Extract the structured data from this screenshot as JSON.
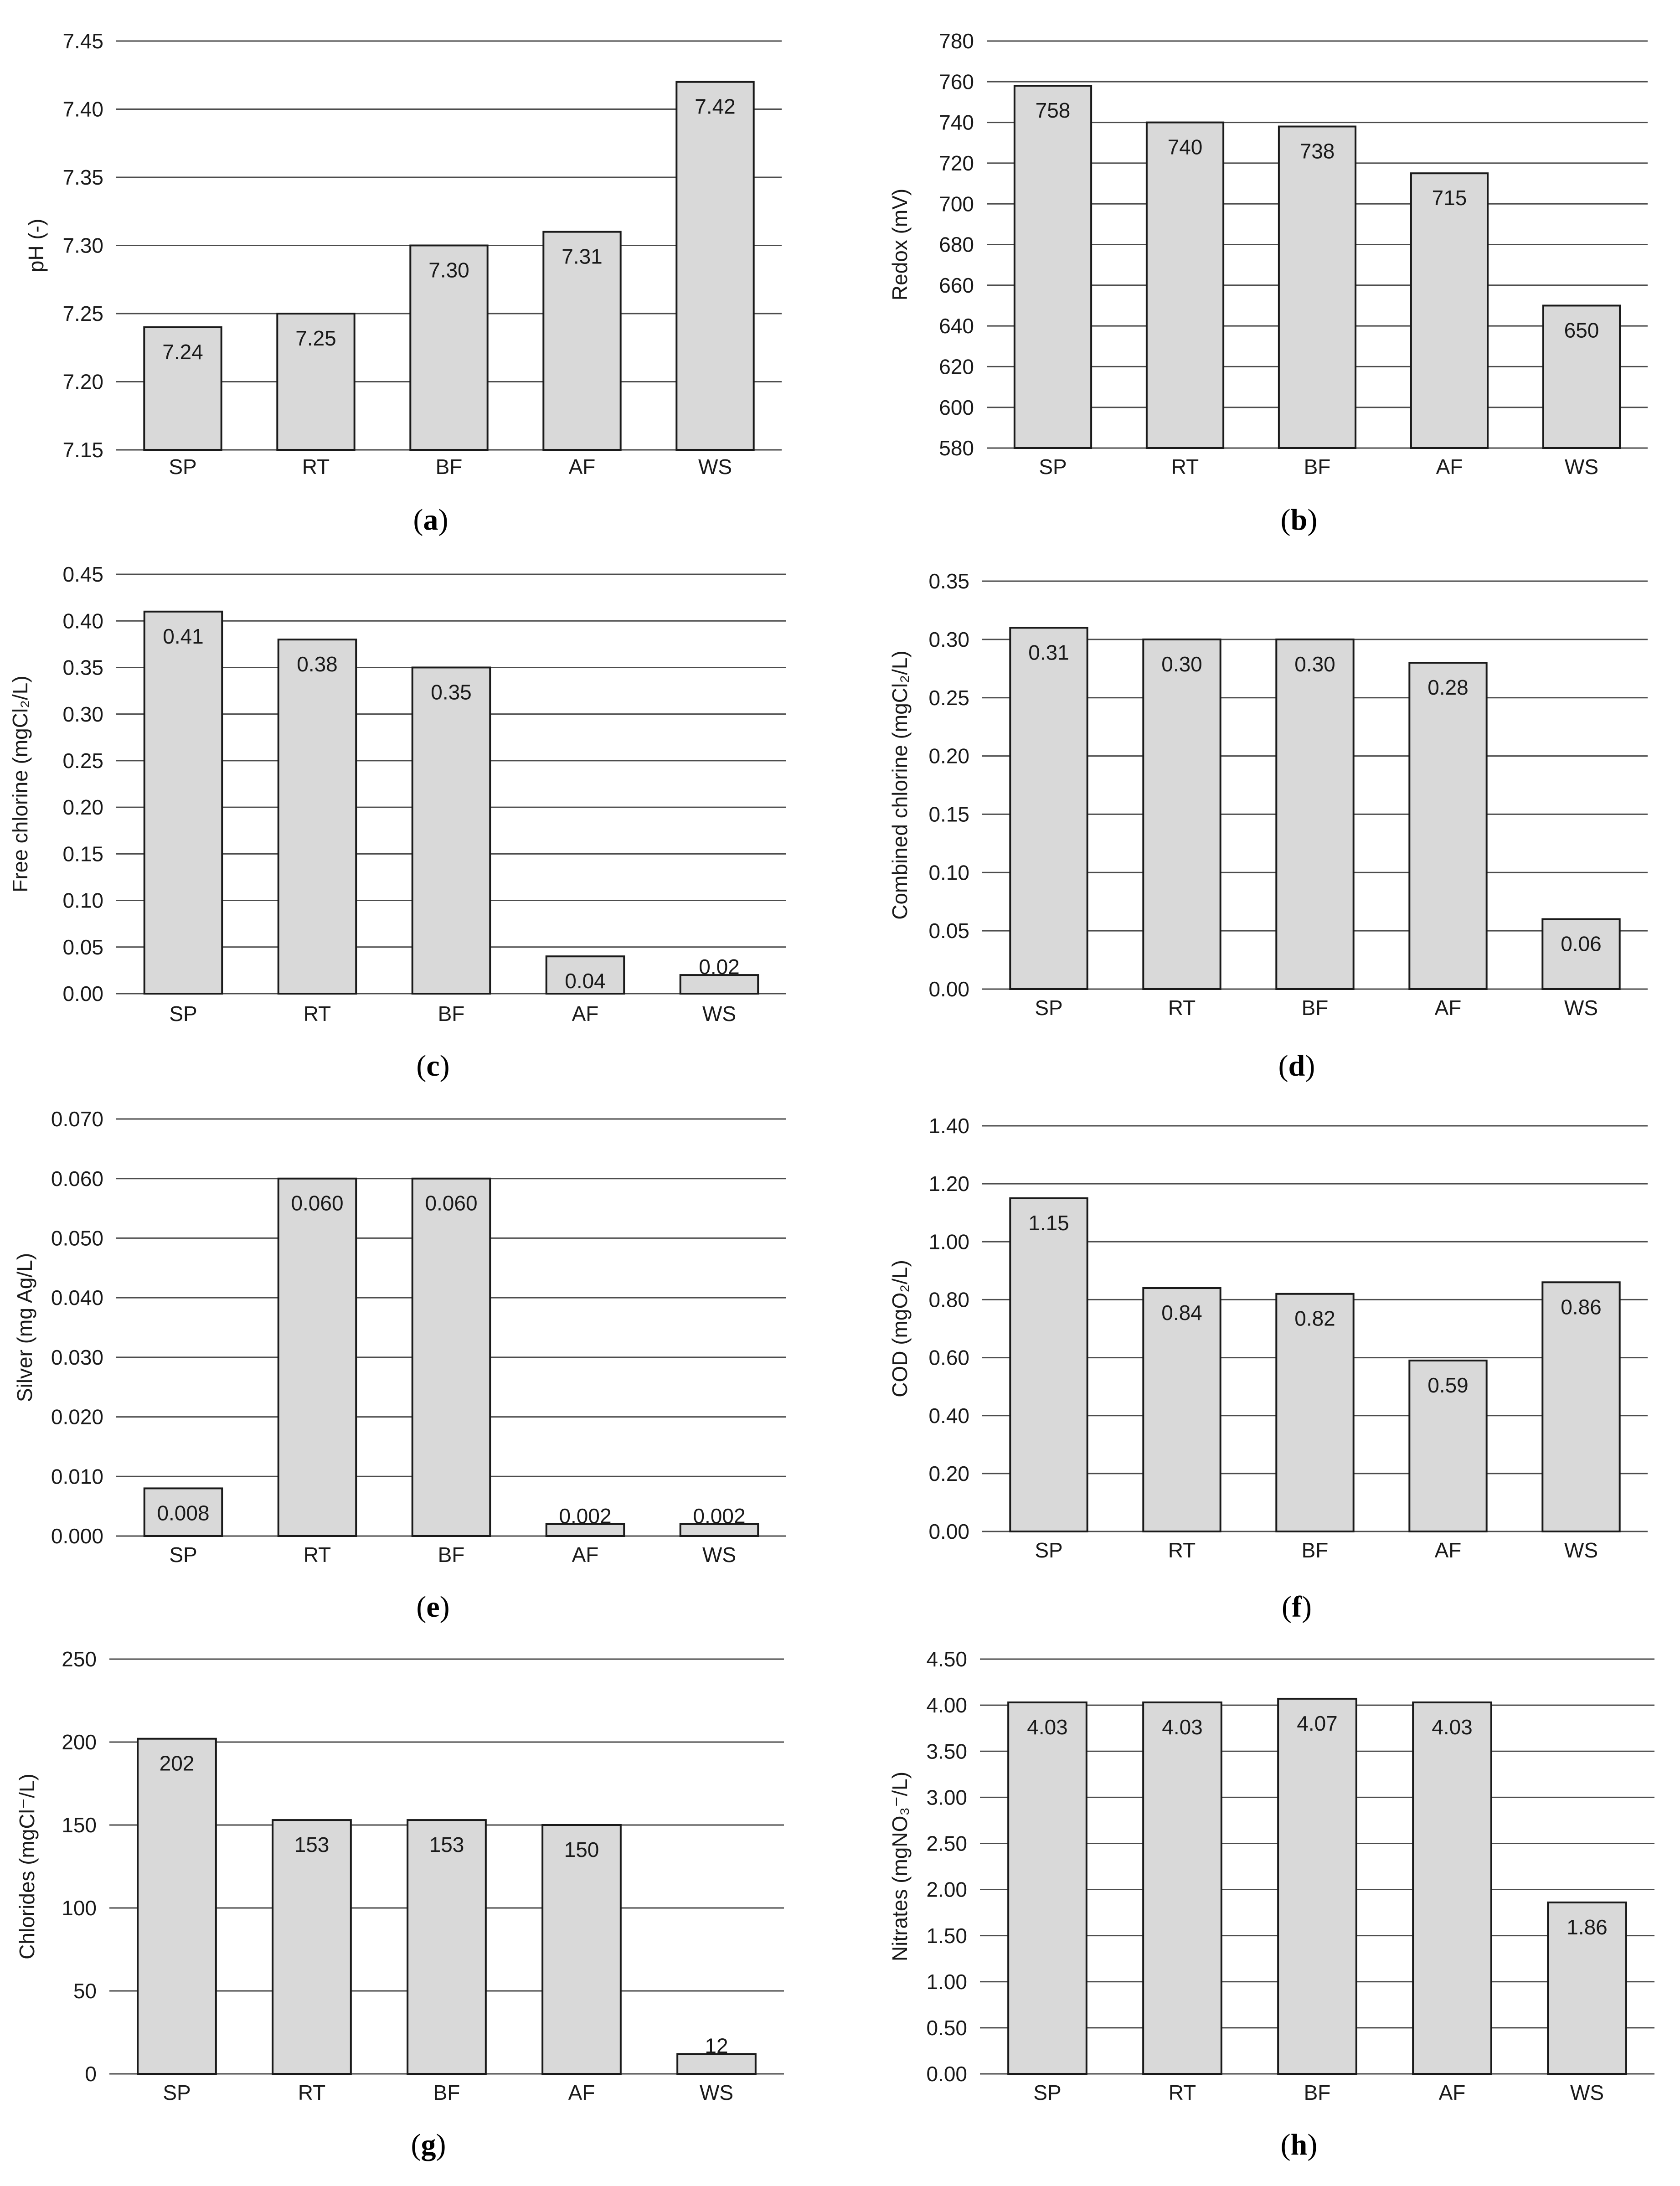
{
  "figure": {
    "palette": {
      "bar_fill": "#d9d9d9",
      "bar_stroke": "#1a1a1a",
      "grid": "#4d4d4d",
      "text": "#1a1a1a"
    }
  },
  "chart_data": [
    {
      "id": "a",
      "type": "bar",
      "caption_letter": "a",
      "categories": [
        "SP",
        "RT",
        "BF",
        "AF",
        "WS"
      ],
      "values": [
        7.24,
        7.25,
        7.3,
        7.31,
        7.42
      ],
      "value_labels": [
        "7.24",
        "7.25",
        "7.30",
        "7.31",
        "7.42"
      ],
      "ylabel": "pH (-)",
      "ylim": [
        7.15,
        7.45
      ],
      "yticks": [
        "7.15",
        "7.20",
        "7.25",
        "7.30",
        "7.35",
        "7.40",
        "7.45"
      ],
      "grid": true
    },
    {
      "id": "b",
      "type": "bar",
      "caption_letter": "b",
      "categories": [
        "SP",
        "RT",
        "BF",
        "AF",
        "WS"
      ],
      "values": [
        758,
        740,
        738,
        715,
        650
      ],
      "value_labels": [
        "758",
        "740",
        "738",
        "715",
        "650"
      ],
      "ylabel": "Redox (mV)",
      "ylim": [
        580,
        780
      ],
      "yticks": [
        "580",
        "600",
        "620",
        "640",
        "660",
        "680",
        "700",
        "720",
        "740",
        "760",
        "780"
      ],
      "grid": true
    },
    {
      "id": "c",
      "type": "bar",
      "caption_letter": "c",
      "categories": [
        "SP",
        "RT",
        "BF",
        "AF",
        "WS"
      ],
      "values": [
        0.41,
        0.38,
        0.35,
        0.04,
        0.02
      ],
      "value_labels": [
        "0.41",
        "0.38",
        "0.35",
        "0.04",
        "0.02"
      ],
      "ylabel": "Free chlorine (mgCl₂/L)",
      "ylim": [
        0,
        0.45
      ],
      "yticks": [
        "0.00",
        "0.05",
        "0.10",
        "0.15",
        "0.20",
        "0.25",
        "0.30",
        "0.35",
        "0.40",
        "0.45"
      ],
      "grid": true
    },
    {
      "id": "d",
      "type": "bar",
      "caption_letter": "d",
      "categories": [
        "SP",
        "RT",
        "BF",
        "AF",
        "WS"
      ],
      "values": [
        0.31,
        0.3,
        0.3,
        0.28,
        0.06
      ],
      "value_labels": [
        "0.31",
        "0.30",
        "0.30",
        "0.28",
        "0.06"
      ],
      "ylabel": "Combined chlorine (mgCl₂/L)",
      "ylim": [
        0,
        0.35
      ],
      "yticks": [
        "0.00",
        "0.05",
        "0.10",
        "0.15",
        "0.20",
        "0.25",
        "0.30",
        "0.35"
      ],
      "grid": true
    },
    {
      "id": "e",
      "type": "bar",
      "caption_letter": "e",
      "categories": [
        "SP",
        "RT",
        "BF",
        "AF",
        "WS"
      ],
      "values": [
        0.008,
        0.06,
        0.06,
        0.002,
        0.002
      ],
      "value_labels": [
        "0.008",
        "0.060",
        "0.060",
        "0.002",
        "0.002"
      ],
      "ylabel": "Silver (mg Ag/L)",
      "ylim": [
        0,
        0.07
      ],
      "yticks": [
        "0.000",
        "0.010",
        "0.020",
        "0.030",
        "0.040",
        "0.050",
        "0.060",
        "0.070"
      ],
      "grid": true
    },
    {
      "id": "f",
      "type": "bar",
      "caption_letter": "f",
      "categories": [
        "SP",
        "RT",
        "BF",
        "AF",
        "WS"
      ],
      "values": [
        1.15,
        0.84,
        0.82,
        0.59,
        0.86
      ],
      "value_labels": [
        "1.15",
        "0.84",
        "0.82",
        "0.59",
        "0.86"
      ],
      "ylabel": "COD (mgO₂/L)",
      "ylim": [
        0,
        1.4
      ],
      "yticks": [
        "0.00",
        "0.20",
        "0.40",
        "0.60",
        "0.80",
        "1.00",
        "1.20",
        "1.40"
      ],
      "grid": true
    },
    {
      "id": "g",
      "type": "bar",
      "caption_letter": "g",
      "categories": [
        "SP",
        "RT",
        "BF",
        "AF",
        "WS"
      ],
      "values": [
        202,
        153,
        153,
        150,
        12
      ],
      "value_labels": [
        "202",
        "153",
        "153",
        "150",
        "12"
      ],
      "ylabel": "Chlorides (mgCl⁻/L)",
      "ylim": [
        0,
        250
      ],
      "yticks": [
        "0",
        "50",
        "100",
        "150",
        "200",
        "250"
      ],
      "grid": true
    },
    {
      "id": "h",
      "type": "bar",
      "caption_letter": "h",
      "categories": [
        "SP",
        "RT",
        "BF",
        "AF",
        "WS"
      ],
      "values": [
        4.03,
        4.03,
        4.07,
        4.03,
        1.86
      ],
      "value_labels": [
        "4.03",
        "4.03",
        "4.07",
        "4.03",
        "1.86"
      ],
      "ylabel": "Nitrates (mgNO₃⁻/L)",
      "ylim": [
        0,
        4.5
      ],
      "yticks": [
        "0.00",
        "0.50",
        "1.00",
        "1.50",
        "2.00",
        "2.50",
        "3.00",
        "3.50",
        "4.00",
        "4.50"
      ],
      "grid": true
    }
  ]
}
